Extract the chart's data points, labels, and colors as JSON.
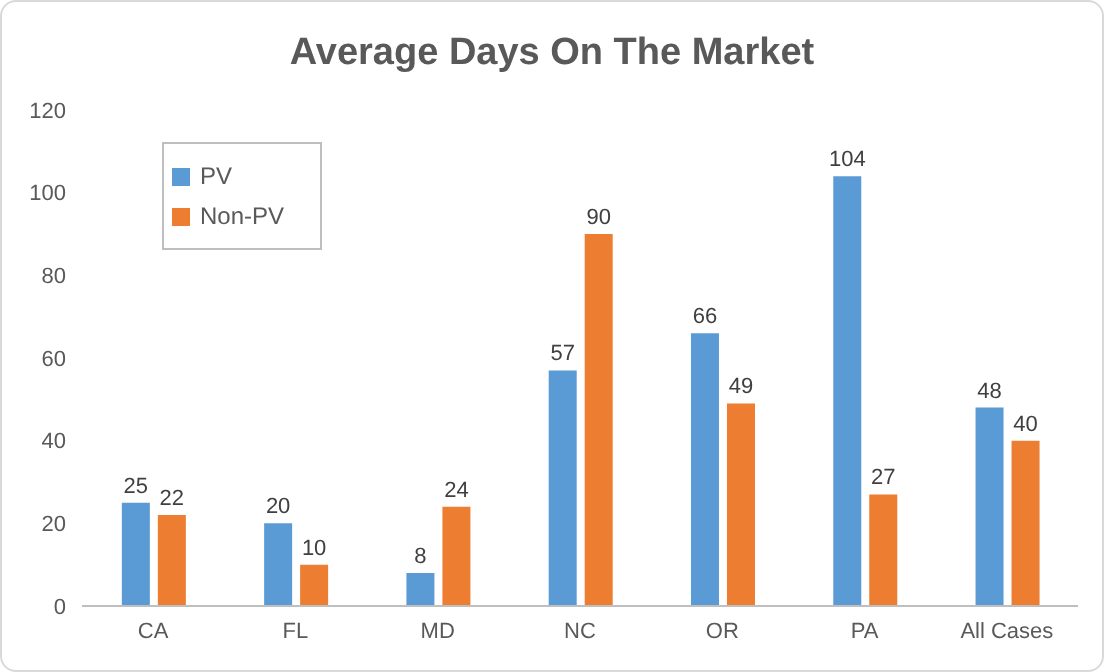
{
  "chart_data": {
    "type": "bar",
    "title": "Average Days On The Market",
    "categories": [
      "CA",
      "FL",
      "MD",
      "NC",
      "OR",
      "PA",
      "All Cases"
    ],
    "series": [
      {
        "name": "PV",
        "color": "#5b9bd5",
        "values": [
          25,
          20,
          8,
          57,
          66,
          104,
          48
        ]
      },
      {
        "name": "Non-PV",
        "color": "#ed7d31",
        "values": [
          22,
          10,
          24,
          90,
          49,
          27,
          40
        ]
      }
    ],
    "ylim": [
      0,
      120
    ],
    "yticks": [
      0,
      20,
      40,
      60,
      80,
      100,
      120
    ],
    "data_labels": true,
    "legend": "top left",
    "grid": false
  }
}
